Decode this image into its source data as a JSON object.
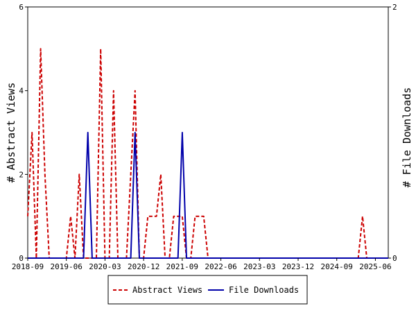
{
  "chart_data": {
    "type": "line",
    "x_ticks": [
      "2018-09",
      "2019-06",
      "2020-03",
      "2020-12",
      "2021-09",
      "2022-06",
      "2023-03",
      "2023-12",
      "2024-09",
      "2025-06"
    ],
    "x_range": [
      "2018-09",
      "2025-09"
    ],
    "y_left": {
      "label": "# Abstract Views",
      "ticks": [
        "0",
        "2",
        "4",
        "6"
      ],
      "range": [
        0,
        6
      ]
    },
    "y_right": {
      "label": "# File Downloads",
      "ticks": [
        "0",
        "2"
      ],
      "range": [
        0,
        2
      ]
    },
    "grid": false,
    "legend_position": "bottom-center",
    "series": [
      {
        "name": "Abstract Views",
        "axis": "left",
        "color": "#cc0000",
        "style": "dashed",
        "points": [
          [
            "2018-09",
            1
          ],
          [
            "2018-10",
            3
          ],
          [
            "2018-11",
            0
          ],
          [
            "2018-12",
            5
          ],
          [
            "2019-01",
            2
          ],
          [
            "2019-02",
            0
          ],
          [
            "2019-03",
            0
          ],
          [
            "2019-04",
            0
          ],
          [
            "2019-05",
            0
          ],
          [
            "2019-06",
            0
          ],
          [
            "2019-07",
            1
          ],
          [
            "2019-08",
            0
          ],
          [
            "2019-09",
            2
          ],
          [
            "2019-10",
            0
          ],
          [
            "2019-11",
            0
          ],
          [
            "2019-12",
            0
          ],
          [
            "2020-01",
            0
          ],
          [
            "2020-02",
            5
          ],
          [
            "2020-03",
            0
          ],
          [
            "2020-04",
            0
          ],
          [
            "2020-05",
            4
          ],
          [
            "2020-06",
            0
          ],
          [
            "2020-07",
            0
          ],
          [
            "2020-08",
            0
          ],
          [
            "2020-09",
            2
          ],
          [
            "2020-10",
            4
          ],
          [
            "2020-11",
            0
          ],
          [
            "2020-12",
            0
          ],
          [
            "2021-01",
            1
          ],
          [
            "2021-02",
            1
          ],
          [
            "2021-03",
            1
          ],
          [
            "2021-04",
            2
          ],
          [
            "2021-05",
            0
          ],
          [
            "2021-06",
            0
          ],
          [
            "2021-07",
            1
          ],
          [
            "2021-08",
            1
          ],
          [
            "2021-09",
            1
          ],
          [
            "2021-10",
            0
          ],
          [
            "2021-11",
            0
          ],
          [
            "2021-12",
            1
          ],
          [
            "2022-01",
            1
          ],
          [
            "2022-02",
            1
          ],
          [
            "2022-03",
            0
          ],
          [
            "2022-04",
            0
          ],
          [
            "2022-05",
            0
          ],
          [
            "2022-06",
            0
          ],
          [
            "2022-07",
            0
          ],
          [
            "2022-08",
            0
          ],
          [
            "2022-09",
            0
          ],
          [
            "2022-10",
            0
          ],
          [
            "2022-11",
            0
          ],
          [
            "2022-12",
            0
          ],
          [
            "2023-01",
            0
          ],
          [
            "2023-02",
            0
          ],
          [
            "2023-03",
            0
          ],
          [
            "2023-04",
            0
          ],
          [
            "2023-05",
            0
          ],
          [
            "2023-06",
            0
          ],
          [
            "2023-07",
            0
          ],
          [
            "2023-08",
            0
          ],
          [
            "2023-09",
            0
          ],
          [
            "2023-10",
            0
          ],
          [
            "2023-11",
            0
          ],
          [
            "2023-12",
            0
          ],
          [
            "2024-01",
            0
          ],
          [
            "2024-02",
            0
          ],
          [
            "2024-03",
            0
          ],
          [
            "2024-04",
            0
          ],
          [
            "2024-05",
            0
          ],
          [
            "2024-06",
            0
          ],
          [
            "2024-07",
            0
          ],
          [
            "2024-08",
            0
          ],
          [
            "2024-09",
            0
          ],
          [
            "2024-10",
            0
          ],
          [
            "2024-11",
            0
          ],
          [
            "2024-12",
            0
          ],
          [
            "2025-01",
            0
          ],
          [
            "2025-02",
            0
          ],
          [
            "2025-03",
            1
          ],
          [
            "2025-04",
            0
          ],
          [
            "2025-05",
            0
          ],
          [
            "2025-06",
            0
          ],
          [
            "2025-07",
            0
          ],
          [
            "2025-08",
            0
          ],
          [
            "2025-09",
            0
          ]
        ]
      },
      {
        "name": "File Downloads",
        "axis": "right",
        "color": "#0000aa",
        "style": "solid",
        "points": [
          [
            "2018-09",
            0
          ],
          [
            "2019-03",
            0
          ],
          [
            "2019-04",
            0
          ],
          [
            "2019-05",
            0
          ],
          [
            "2019-06",
            0
          ],
          [
            "2019-07",
            0
          ],
          [
            "2019-08",
            0
          ],
          [
            "2019-09",
            0
          ],
          [
            "2019-10",
            0
          ],
          [
            "2019-11",
            1
          ],
          [
            "2019-12",
            0
          ],
          [
            "2020-01",
            0
          ],
          [
            "2020-02",
            0
          ],
          [
            "2020-03",
            0
          ],
          [
            "2020-04",
            0
          ],
          [
            "2020-05",
            0
          ],
          [
            "2020-06",
            0
          ],
          [
            "2020-07",
            0
          ],
          [
            "2020-08",
            0
          ],
          [
            "2020-09",
            0
          ],
          [
            "2020-10",
            1
          ],
          [
            "2020-11",
            0
          ],
          [
            "2020-12",
            0
          ],
          [
            "2021-01",
            0
          ],
          [
            "2021-02",
            0
          ],
          [
            "2021-03",
            0
          ],
          [
            "2021-04",
            0
          ],
          [
            "2021-05",
            0
          ],
          [
            "2021-06",
            0
          ],
          [
            "2021-07",
            0
          ],
          [
            "2021-08",
            0
          ],
          [
            "2021-09",
            1
          ],
          [
            "2021-10",
            0
          ],
          [
            "2021-11",
            0
          ],
          [
            "2022-06",
            0
          ],
          [
            "2025-09",
            0
          ]
        ]
      }
    ]
  }
}
